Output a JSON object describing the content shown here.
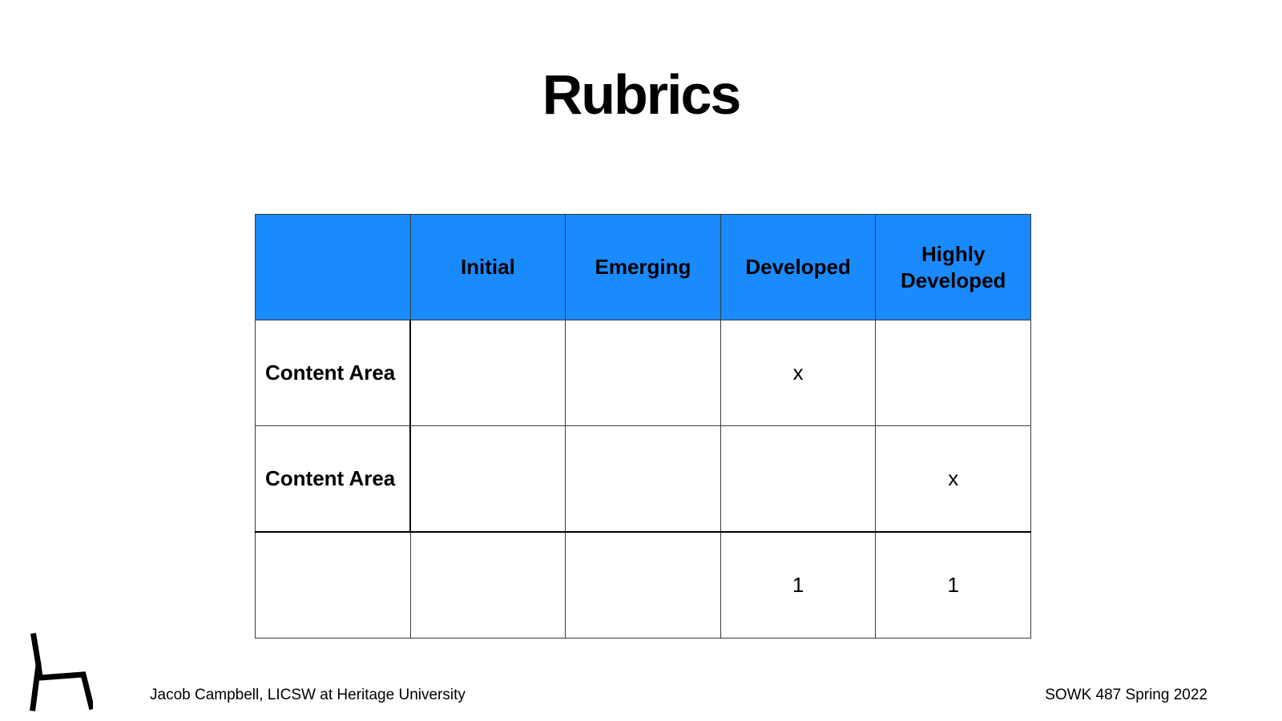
{
  "title": "Rubrics",
  "table": {
    "headers": [
      "",
      "Initial",
      "Emerging",
      "Developed",
      "Highly Developed"
    ],
    "rows": [
      {
        "label": "Content Area",
        "cells": [
          "",
          "",
          "x",
          ""
        ]
      },
      {
        "label": "Content Area",
        "cells": [
          "",
          "",
          "",
          "x"
        ]
      },
      {
        "label": "",
        "cells": [
          "",
          "",
          "1",
          "1"
        ]
      }
    ]
  },
  "footer": {
    "left": "Jacob Campbell, LICSW at Heritage University",
    "right": "SOWK 487 Spring 2022"
  },
  "logo": {
    "icon": "chair-icon"
  },
  "colors": {
    "header_bg": "#1a8aff"
  }
}
